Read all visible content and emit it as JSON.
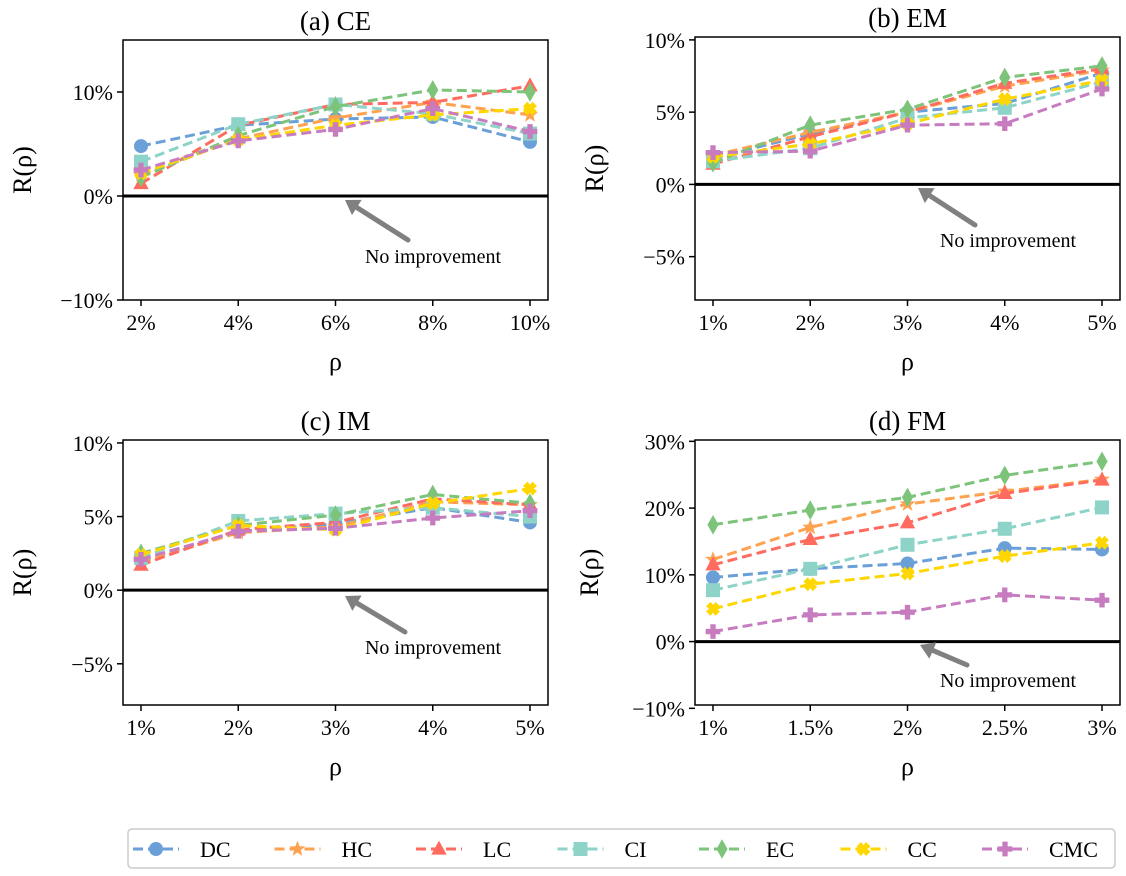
{
  "chart_data": [
    {
      "type": "line",
      "title": "(a) CE",
      "xlabel": "ρ",
      "ylabel": "R(ρ)",
      "categories": [
        "2%",
        "4%",
        "6%",
        "8%",
        "10%"
      ],
      "yticks": [
        -10,
        0,
        10
      ],
      "ytick_labels": [
        "−10%",
        "0%",
        "10%"
      ],
      "ylim": [
        -10,
        15
      ],
      "grid": false,
      "annotation": "No improvement",
      "series": [
        {
          "name": "DC",
          "values": [
            4.8,
            6.8,
            7.4,
            7.6,
            5.2
          ]
        },
        {
          "name": "HC",
          "values": [
            2.0,
            5.5,
            7.5,
            9.0,
            7.8
          ]
        },
        {
          "name": "LC",
          "values": [
            1.2,
            6.8,
            8.8,
            9.0,
            10.6
          ]
        },
        {
          "name": "CI",
          "values": [
            3.3,
            6.9,
            8.8,
            7.9,
            6.0
          ]
        },
        {
          "name": "EC",
          "values": [
            1.8,
            5.8,
            8.6,
            10.2,
            10.0
          ]
        },
        {
          "name": "CC",
          "values": [
            2.2,
            5.4,
            6.8,
            7.8,
            8.4
          ]
        },
        {
          "name": "CMC",
          "values": [
            2.5,
            5.3,
            6.4,
            8.4,
            6.2
          ]
        }
      ]
    },
    {
      "type": "line",
      "title": "(b) EM",
      "xlabel": "ρ",
      "ylabel": "R(ρ)",
      "categories": [
        "1%",
        "2%",
        "3%",
        "4%",
        "5%"
      ],
      "yticks": [
        -5,
        0,
        5,
        10
      ],
      "ytick_labels": [
        "−5%",
        "0%",
        "5%",
        "10%"
      ],
      "ylim": [
        -8,
        10.2
      ],
      "grid": false,
      "annotation": "No improvement",
      "series": [
        {
          "name": "DC",
          "values": [
            1.8,
            3.5,
            5.0,
            5.6,
            7.7
          ]
        },
        {
          "name": "HC",
          "values": [
            2.0,
            3.6,
            5.0,
            6.8,
            7.9
          ]
        },
        {
          "name": "LC",
          "values": [
            1.4,
            3.3,
            5.0,
            7.0,
            8.0
          ]
        },
        {
          "name": "CI",
          "values": [
            1.6,
            2.5,
            4.6,
            5.3,
            7.1
          ]
        },
        {
          "name": "EC",
          "values": [
            1.5,
            4.1,
            5.2,
            7.4,
            8.2
          ]
        },
        {
          "name": "CC",
          "values": [
            1.9,
            2.8,
            4.2,
            5.9,
            7.2
          ]
        },
        {
          "name": "CMC",
          "values": [
            2.2,
            2.3,
            4.1,
            4.2,
            6.6
          ]
        }
      ]
    },
    {
      "type": "line",
      "title": "(c) IM",
      "xlabel": "ρ",
      "ylabel": "R(ρ)",
      "categories": [
        "1%",
        "2%",
        "3%",
        "4%",
        "5%"
      ],
      "yticks": [
        -5,
        0,
        5,
        10
      ],
      "ytick_labels": [
        "−5%",
        "0%",
        "5%",
        "10%"
      ],
      "ylim": [
        -7.8,
        10.2
      ],
      "grid": false,
      "annotation": "No improvement",
      "series": [
        {
          "name": "DC",
          "values": [
            2.0,
            4.0,
            4.5,
            5.6,
            4.6
          ]
        },
        {
          "name": "HC",
          "values": [
            1.9,
            3.9,
            4.3,
            6.0,
            5.8
          ]
        },
        {
          "name": "LC",
          "values": [
            1.7,
            4.1,
            4.6,
            6.2,
            5.8
          ]
        },
        {
          "name": "CI",
          "values": [
            2.2,
            4.7,
            5.2,
            5.6,
            5.0
          ]
        },
        {
          "name": "EC",
          "values": [
            2.5,
            4.4,
            5.1,
            6.5,
            5.9
          ]
        },
        {
          "name": "CC",
          "values": [
            2.4,
            4.4,
            4.1,
            5.9,
            6.9
          ]
        },
        {
          "name": "CMC",
          "values": [
            2.1,
            4.0,
            4.2,
            4.9,
            5.4
          ]
        }
      ]
    },
    {
      "type": "line",
      "title": "(d) FM",
      "xlabel": "ρ",
      "ylabel": "R(ρ)",
      "categories": [
        "1%",
        "1.5%",
        "2%",
        "2.5%",
        "3%"
      ],
      "yticks": [
        -10,
        0,
        10,
        20,
        30
      ],
      "ytick_labels": [
        "−10%",
        "0%",
        "10%",
        "20%",
        "30%"
      ],
      "ylim": [
        -9.5,
        30.2
      ],
      "grid": false,
      "annotation": "No improvement",
      "series": [
        {
          "name": "DC",
          "values": [
            9.6,
            10.9,
            11.7,
            14.0,
            13.8
          ]
        },
        {
          "name": "HC",
          "values": [
            12.3,
            17.1,
            20.6,
            22.5,
            24.3
          ]
        },
        {
          "name": "LC",
          "values": [
            11.5,
            15.3,
            17.8,
            22.2,
            24.2
          ]
        },
        {
          "name": "CI",
          "values": [
            7.7,
            10.9,
            14.5,
            16.9,
            20.1
          ]
        },
        {
          "name": "EC",
          "values": [
            17.5,
            19.7,
            21.6,
            24.9,
            27.0
          ]
        },
        {
          "name": "CC",
          "values": [
            4.9,
            8.6,
            10.2,
            12.8,
            14.8
          ]
        },
        {
          "name": "CMC",
          "values": [
            1.5,
            4.0,
            4.4,
            7.0,
            6.2
          ]
        }
      ]
    }
  ],
  "legend": {
    "placement": "bottom",
    "entries": [
      {
        "name": "DC",
        "color": "#6a9fd8",
        "marker": "circle"
      },
      {
        "name": "HC",
        "color": "#ffa24f",
        "marker": "star"
      },
      {
        "name": "LC",
        "color": "#ff6b5e",
        "marker": "triangle"
      },
      {
        "name": "CI",
        "color": "#8dd3c7",
        "marker": "square"
      },
      {
        "name": "EC",
        "color": "#7dc47a",
        "marker": "diamond"
      },
      {
        "name": "CC",
        "color": "#ffd700",
        "marker": "x-filled"
      },
      {
        "name": "CMC",
        "color": "#c77cc0",
        "marker": "plus-filled"
      }
    ]
  },
  "colors": {
    "baseline": "#000000",
    "arrow": "#808080"
  }
}
